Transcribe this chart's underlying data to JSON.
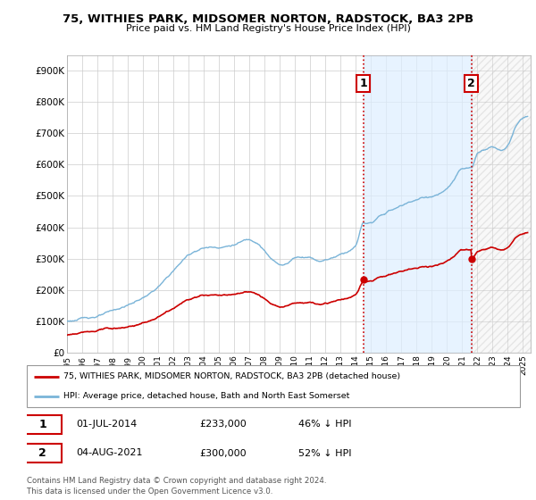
{
  "title": "75, WITHIES PARK, MIDSOMER NORTON, RADSTOCK, BA3 2PB",
  "subtitle": "Price paid vs. HM Land Registry's House Price Index (HPI)",
  "ylim": [
    0,
    950000
  ],
  "yticks": [
    0,
    100000,
    200000,
    300000,
    400000,
    500000,
    600000,
    700000,
    800000,
    900000
  ],
  "ytick_labels": [
    "£0",
    "£100K",
    "£200K",
    "£300K",
    "£400K",
    "£500K",
    "£600K",
    "£700K",
    "£800K",
    "£900K"
  ],
  "hpi_color": "#7ab4d8",
  "price_color": "#cc0000",
  "vline_color": "#cc0000",
  "shade_color": "#ddeeff",
  "sale1_x": 2014.5,
  "sale1_y": 233000,
  "sale2_x": 2021.6,
  "sale2_y": 300000,
  "label_1_text": "1",
  "label_2_text": "2",
  "legend_line1": "75, WITHIES PARK, MIDSOMER NORTON, RADSTOCK, BA3 2PB (detached house)",
  "legend_line2": "HPI: Average price, detached house, Bath and North East Somerset",
  "table_row1": [
    "1",
    "01-JUL-2014",
    "£233,000",
    "46% ↓ HPI"
  ],
  "table_row2": [
    "2",
    "04-AUG-2021",
    "£300,000",
    "52% ↓ HPI"
  ],
  "footnote": "Contains HM Land Registry data © Crown copyright and database right 2024.\nThis data is licensed under the Open Government Licence v3.0.",
  "grid_color": "#cccccc",
  "xmin": 1995,
  "xmax": 2025.5
}
